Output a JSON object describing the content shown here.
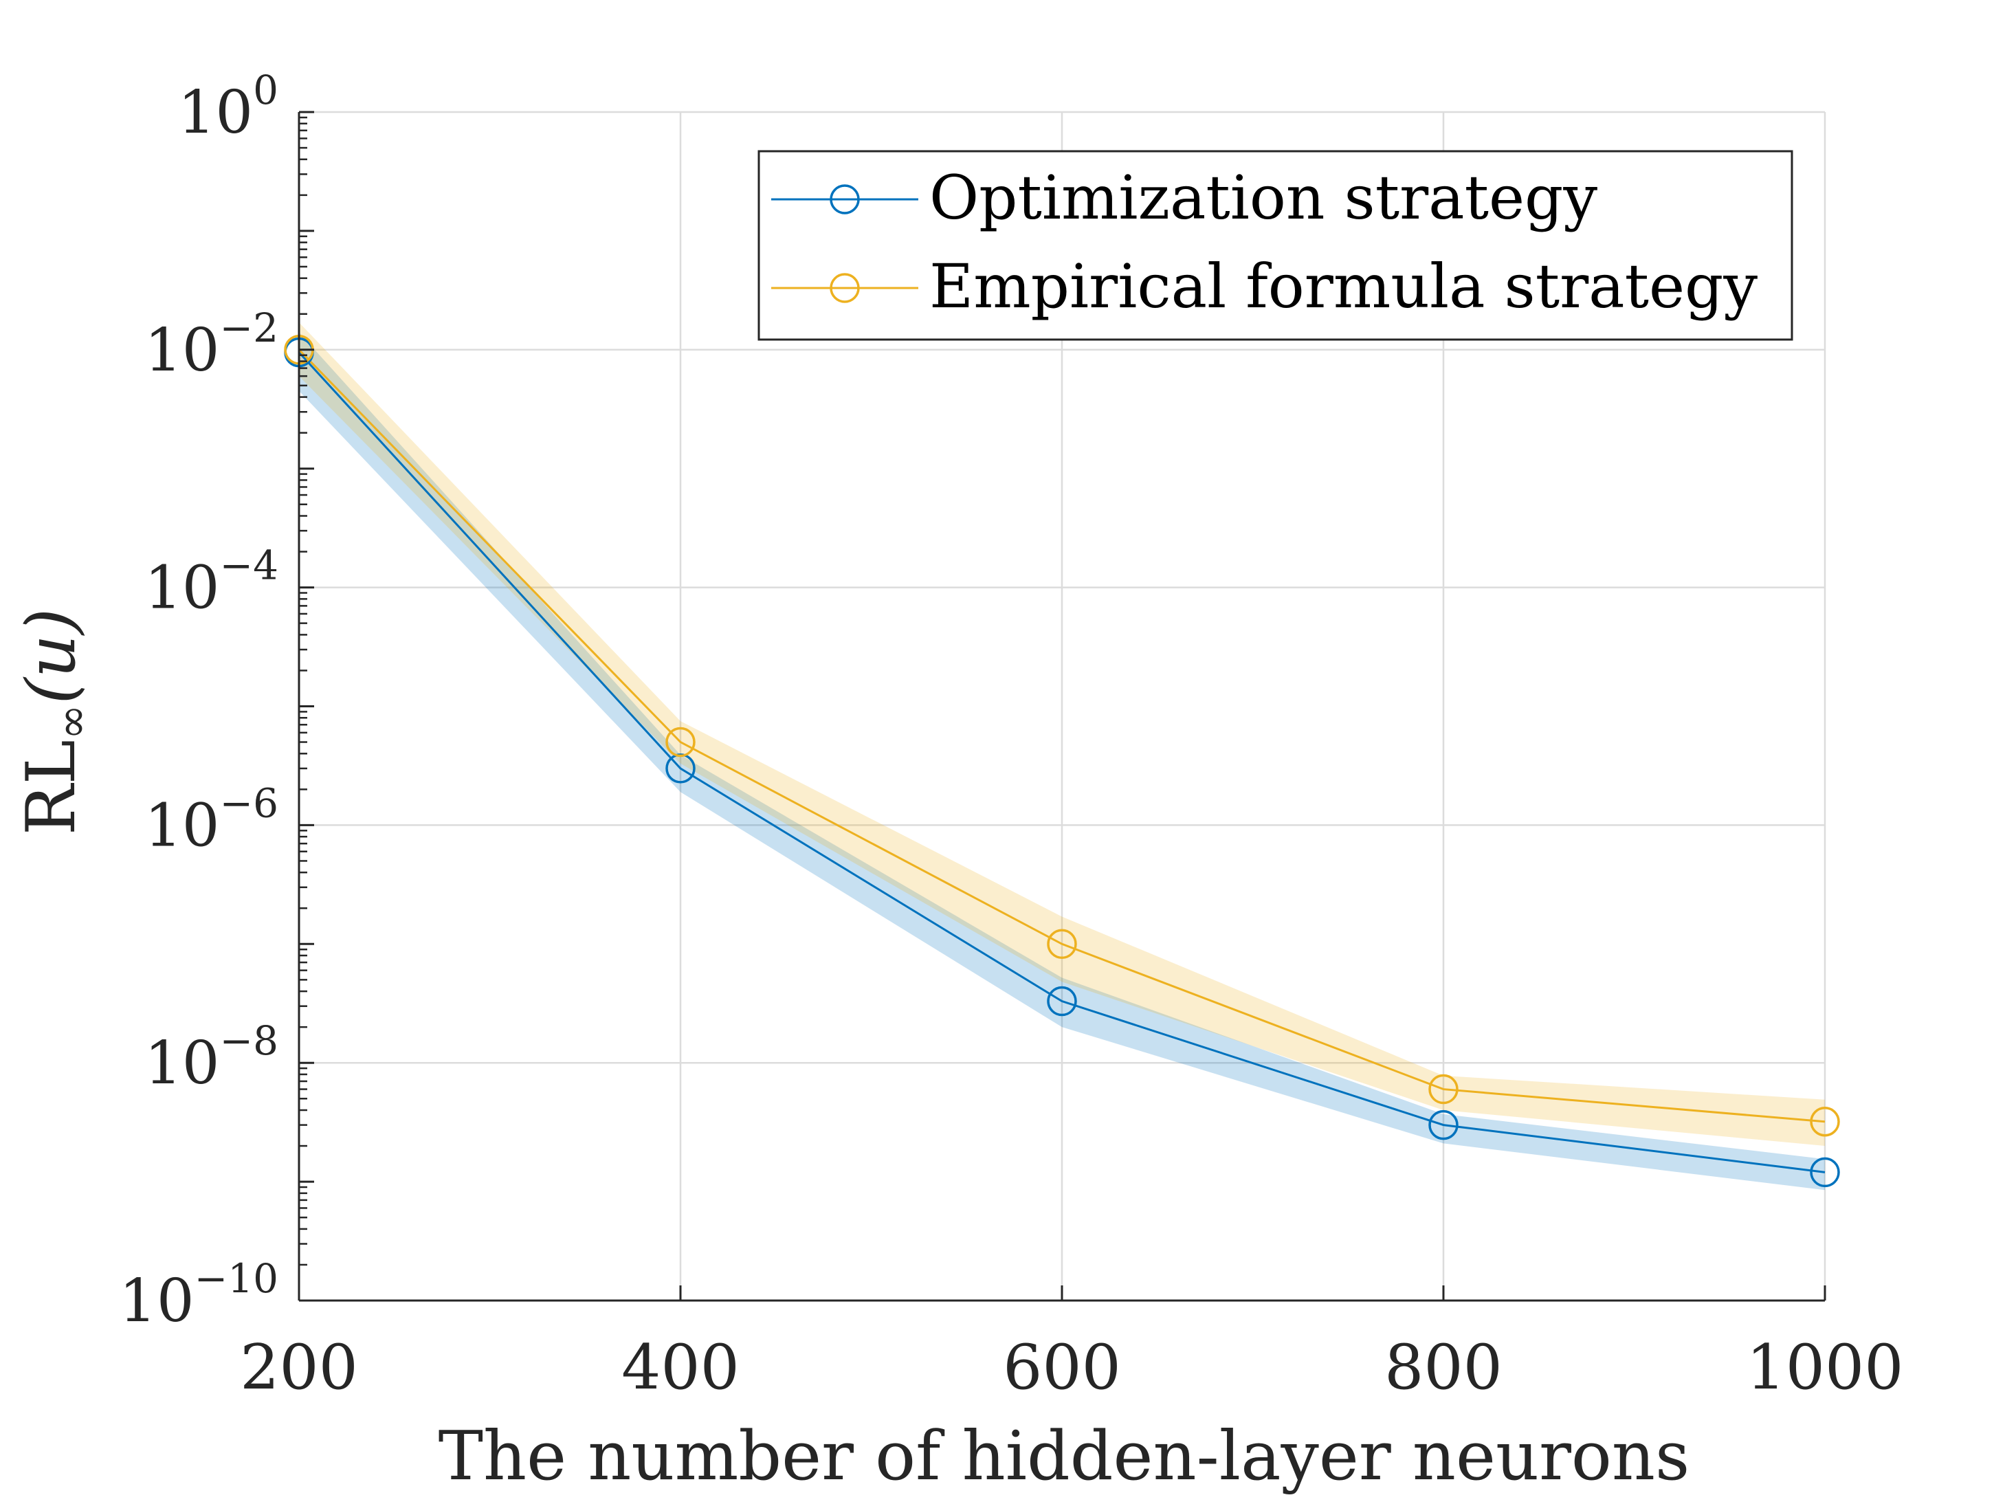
{
  "chart_data": {
    "type": "line",
    "title": "",
    "xlabel": "The number of hidden-layer neurons",
    "ylabel": {
      "main": "RL",
      "sub": "∞",
      "arg": "(u)"
    },
    "yscale": "log",
    "xlim": [
      200,
      1000
    ],
    "ylim_exponent": [
      -10,
      0
    ],
    "grid": true,
    "legend_position": "top-right",
    "x": [
      200,
      400,
      600,
      800,
      1000
    ],
    "x_tick_labels": [
      "200",
      "400",
      "600",
      "800",
      "1000"
    ],
    "y_ticks": [
      {
        "exp": 0,
        "base": "10",
        "sup": "0"
      },
      {
        "exp": -2,
        "base": "10",
        "sup": "−2"
      },
      {
        "exp": -4,
        "base": "10",
        "sup": "−4"
      },
      {
        "exp": -6,
        "base": "10",
        "sup": "−6"
      },
      {
        "exp": -8,
        "base": "10",
        "sup": "−8"
      },
      {
        "exp": -10,
        "base": "10",
        "sup": "−10"
      }
    ],
    "series": [
      {
        "name": "Optimization strategy",
        "color": "#0072BD",
        "band_color": "#0072BD",
        "values": [
          0.0095,
          3e-06,
          3.3e-08,
          3e-09,
          1.2e-09
        ],
        "band_lower": [
          0.0045,
          1.9e-06,
          2e-08,
          2.1e-09,
          8.5e-10
        ],
        "band_upper": [
          0.014,
          3.9e-06,
          5.2e-08,
          3.7e-09,
          1.55e-09
        ]
      },
      {
        "name": "Empirical formula strategy",
        "color": "#EDB120",
        "band_color": "#EDB120",
        "values": [
          0.01,
          5e-06,
          1e-07,
          6e-09,
          3.2e-09
        ],
        "band_lower": [
          0.006,
          3.3e-06,
          4.8e-08,
          4e-09,
          2e-09
        ],
        "band_upper": [
          0.017,
          7.5e-06,
          1.7e-07,
          7.8e-09,
          4.9e-09
        ]
      }
    ]
  }
}
